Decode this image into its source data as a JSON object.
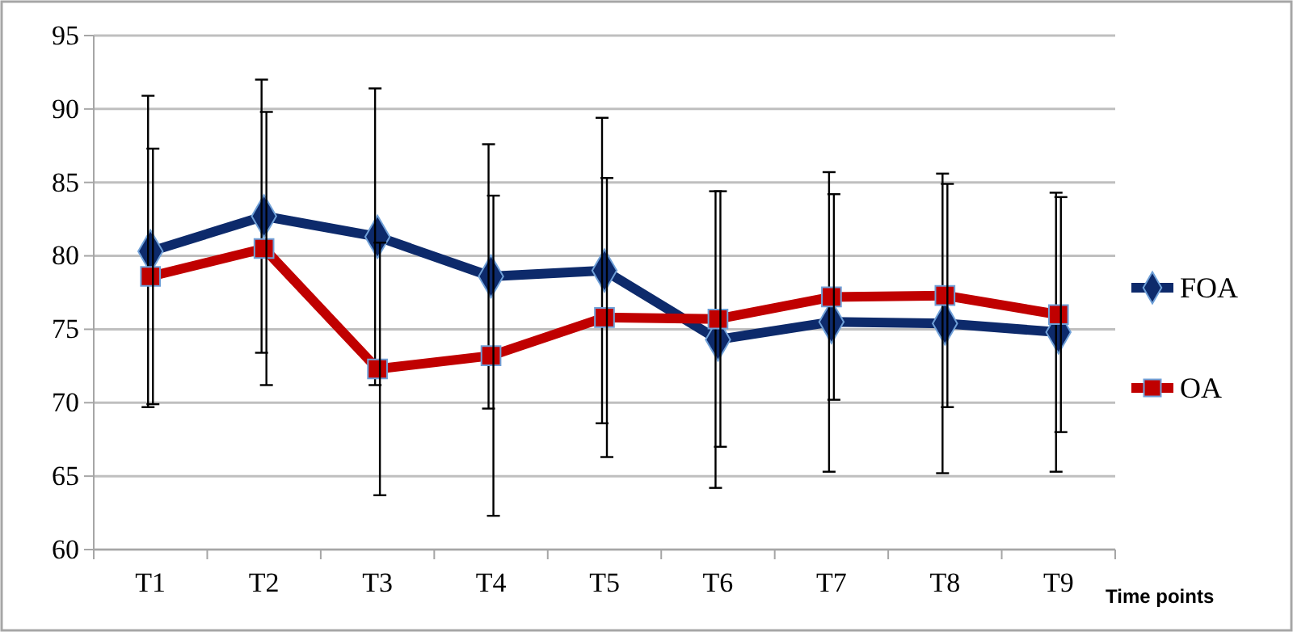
{
  "chart_data": {
    "type": "line",
    "xlabel": "Time points",
    "categories": [
      "T1",
      "T2",
      "T3",
      "T4",
      "T5",
      "T6",
      "T7",
      "T8",
      "T9"
    ],
    "series": [
      {
        "name": "FOA",
        "color": "#0d2a6b",
        "marker": "diamond",
        "values": [
          80.3,
          82.7,
          81.3,
          78.6,
          79.0,
          74.3,
          75.5,
          75.4,
          74.8
        ],
        "errors": [
          10.6,
          9.3,
          10.1,
          9.0,
          10.4,
          10.1,
          10.2,
          10.2,
          9.5
        ]
      },
      {
        "name": "OA",
        "color": "#c00000",
        "marker": "square",
        "values": [
          78.6,
          80.5,
          72.3,
          73.2,
          75.8,
          75.7,
          77.2,
          77.3,
          76.0
        ],
        "errors": [
          8.7,
          9.3,
          8.6,
          10.9,
          9.5,
          8.7,
          7.0,
          7.6,
          8.0
        ]
      }
    ],
    "ylim": [
      60,
      95
    ],
    "yticks": [
      60,
      65,
      70,
      75,
      80,
      85,
      90,
      95
    ],
    "grid": "y",
    "legend": "right"
  }
}
